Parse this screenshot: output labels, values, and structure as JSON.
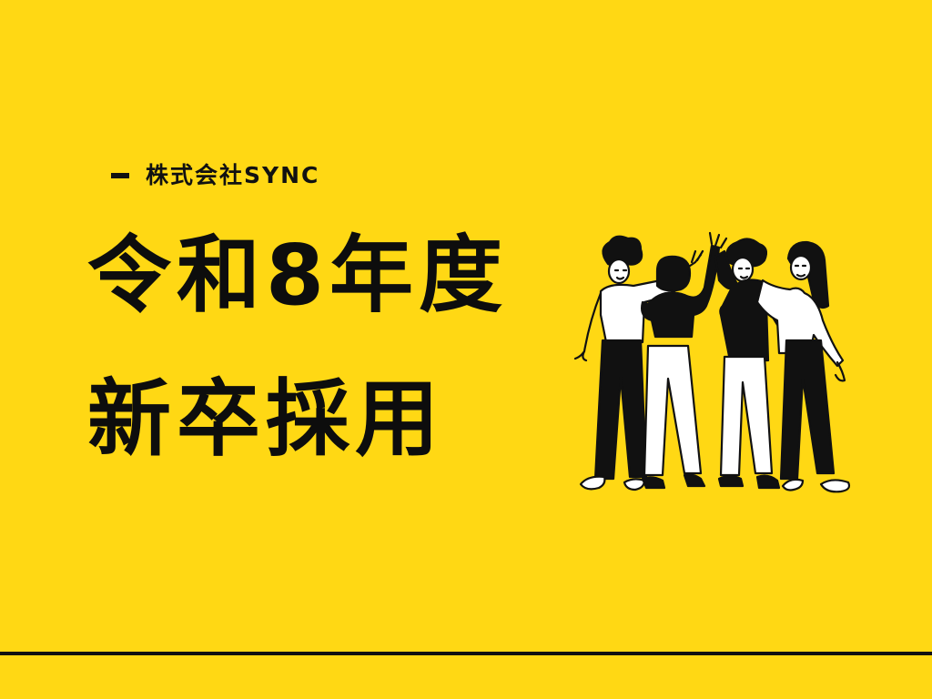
{
  "colors": {
    "background": "#FFD814",
    "ink": "#111111",
    "figure_fill": "#FFFFFF"
  },
  "company_label": "株式会社SYNC",
  "headline": {
    "line1": "令和8年度",
    "line2": "新卒採用"
  },
  "illustration": {
    "icon": "team-high-five-illustration"
  }
}
